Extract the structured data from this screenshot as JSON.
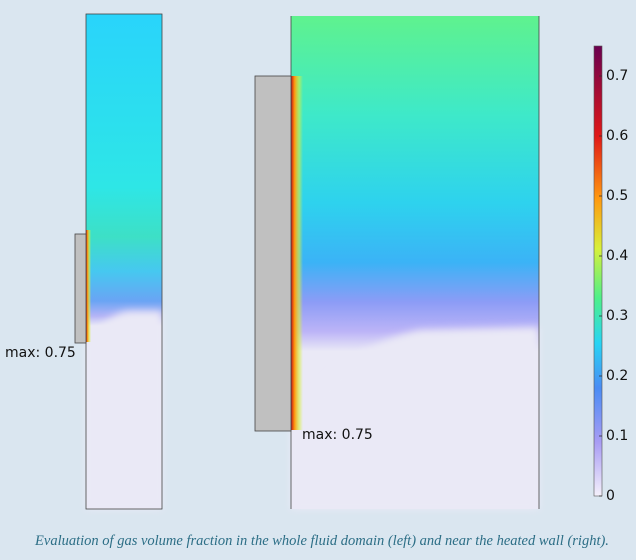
{
  "colorbar": {
    "lim": [
      0,
      0.75
    ],
    "ticks": [
      0,
      0.1,
      0.2,
      0.3,
      0.4,
      0.5,
      0.6,
      0.7
    ]
  },
  "annotations": {
    "left_max": "max: 0.75",
    "right_max": "max: 0.75"
  },
  "caption": "Evaluation of gas volume fraction in the whole fluid domain (left) and near the heated wall (right)."
}
